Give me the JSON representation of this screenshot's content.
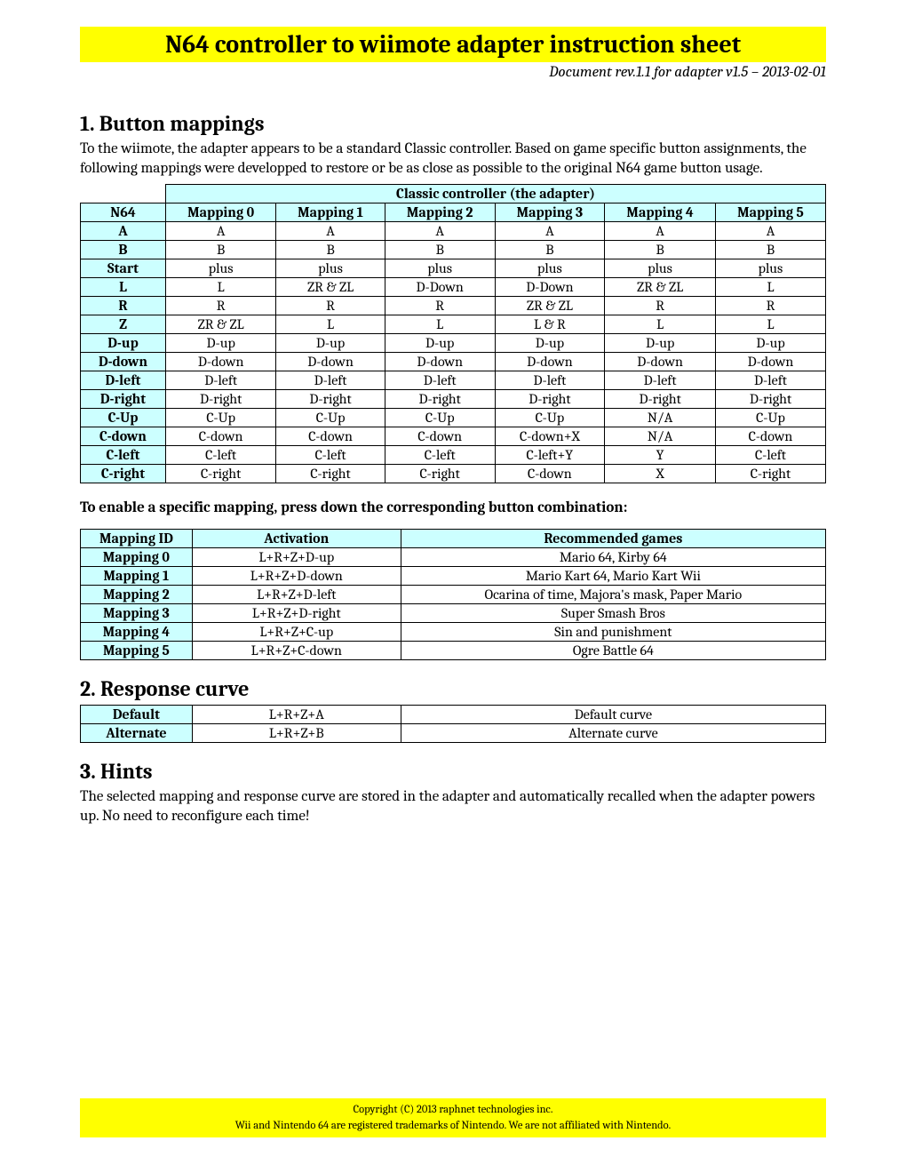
{
  "header": {
    "title": "N64 controller to wiimote adapter instruction sheet",
    "revision": "Document rev.1.1 for adapter v1.5 – 2013-02-01"
  },
  "section1": {
    "heading": "1. Button mappings",
    "intro": " To the wiimote, the adapter appears to be a standard Classic controller. Based on game specific button assignments, the following mappings were developped to restore or be as close as possible to the original N64 game button usage.",
    "table": {
      "super_header": "Classic controller (the adapter)",
      "columns": [
        "N64",
        "Mapping 0",
        "Mapping 1",
        "Mapping 2",
        "Mapping 3",
        "Mapping 4",
        "Mapping 5"
      ],
      "rows": [
        [
          "A",
          "A",
          "A",
          "A",
          "A",
          "A",
          "A"
        ],
        [
          "B",
          "B",
          "B",
          "B",
          "B",
          "B",
          "B"
        ],
        [
          "Start",
          "plus",
          "plus",
          "plus",
          "plus",
          "plus",
          "plus"
        ],
        [
          "L",
          "L",
          "ZR & ZL",
          "D-Down",
          "D-Down",
          "ZR & ZL",
          "L"
        ],
        [
          "R",
          "R",
          "R",
          "R",
          "ZR & ZL",
          "R",
          "R"
        ],
        [
          "Z",
          "ZR & ZL",
          "L",
          "L",
          "L & R",
          "L",
          "L"
        ],
        [
          "D-up",
          "D-up",
          "D-up",
          "D-up",
          "D-up",
          "D-up",
          "D-up"
        ],
        [
          "D-down",
          "D-down",
          "D-down",
          "D-down",
          "D-down",
          "D-down",
          "D-down"
        ],
        [
          "D-left",
          "D-left",
          "D-left",
          "D-left",
          "D-left",
          "D-left",
          "D-left"
        ],
        [
          "D-right",
          "D-right",
          "D-right",
          "D-right",
          "D-right",
          "D-right",
          "D-right"
        ],
        [
          "C-Up",
          "C-Up",
          "C-Up",
          "C-Up",
          "C-Up",
          "N/A",
          "C-Up"
        ],
        [
          "C-down",
          "C-down",
          "C-down",
          "C-down",
          "C-down+X",
          "N/A",
          "C-down"
        ],
        [
          "C-left",
          "C-left",
          "C-left",
          "C-left",
          "C-left+Y",
          "Y",
          "C-left"
        ],
        [
          "C-right",
          "C-right",
          "C-right",
          "C-right",
          "C-down",
          "X",
          "C-right"
        ]
      ]
    },
    "enable_note": "To enable a specific mapping, press down the corresponding button combination:",
    "activation_table": {
      "columns": [
        "Mapping ID",
        "Activation",
        "Recommended games"
      ],
      "col_widths": [
        "15%",
        "28%",
        "57%"
      ],
      "rows": [
        [
          "Mapping 0",
          "L+R+Z+D-up",
          "Mario 64, Kirby 64"
        ],
        [
          "Mapping 1",
          "L+R+Z+D-down",
          "Mario Kart 64, Mario Kart Wii"
        ],
        [
          "Mapping 2",
          "L+R+Z+D-left",
          "Ocarina of time, Majora's mask, Paper Mario"
        ],
        [
          "Mapping 3",
          "L+R+Z+D-right",
          "Super Smash Bros"
        ],
        [
          "Mapping 4",
          "L+R+Z+C-up",
          "Sin and punishment"
        ],
        [
          "Mapping 5",
          "L+R+Z+C-down",
          "Ogre Battle 64"
        ]
      ]
    }
  },
  "section2": {
    "heading": "2. Response curve",
    "table": {
      "col_widths": [
        "15%",
        "28%",
        "57%"
      ],
      "rows": [
        [
          "Default",
          "L+R+Z+A",
          "Default curve"
        ],
        [
          "Alternate",
          "L+R+Z+B",
          "Alternate curve"
        ]
      ]
    }
  },
  "section3": {
    "heading": "3. Hints",
    "text": "The selected mapping and response curve are stored in the adapter and automatically recalled when the adapter powers up. No need to reconfigure each time!"
  },
  "footer": {
    "line1": "Copyright (C) 2013 raphnet technologies inc.",
    "line2": "Wii and Nintendo 64 are registered trademarks of Nintendo. We are not affiliated with Nintendo."
  },
  "styling": {
    "title_bg": "#ffff00",
    "header_cell_bg": "#ccffff",
    "border_color": "#000000",
    "page_bg": "#ffffff",
    "text_color": "#000000",
    "title_fontsize": 28,
    "section_fontsize": 24,
    "body_fontsize": 17,
    "table_fontsize": 16,
    "footer_fontsize": 12.5
  }
}
